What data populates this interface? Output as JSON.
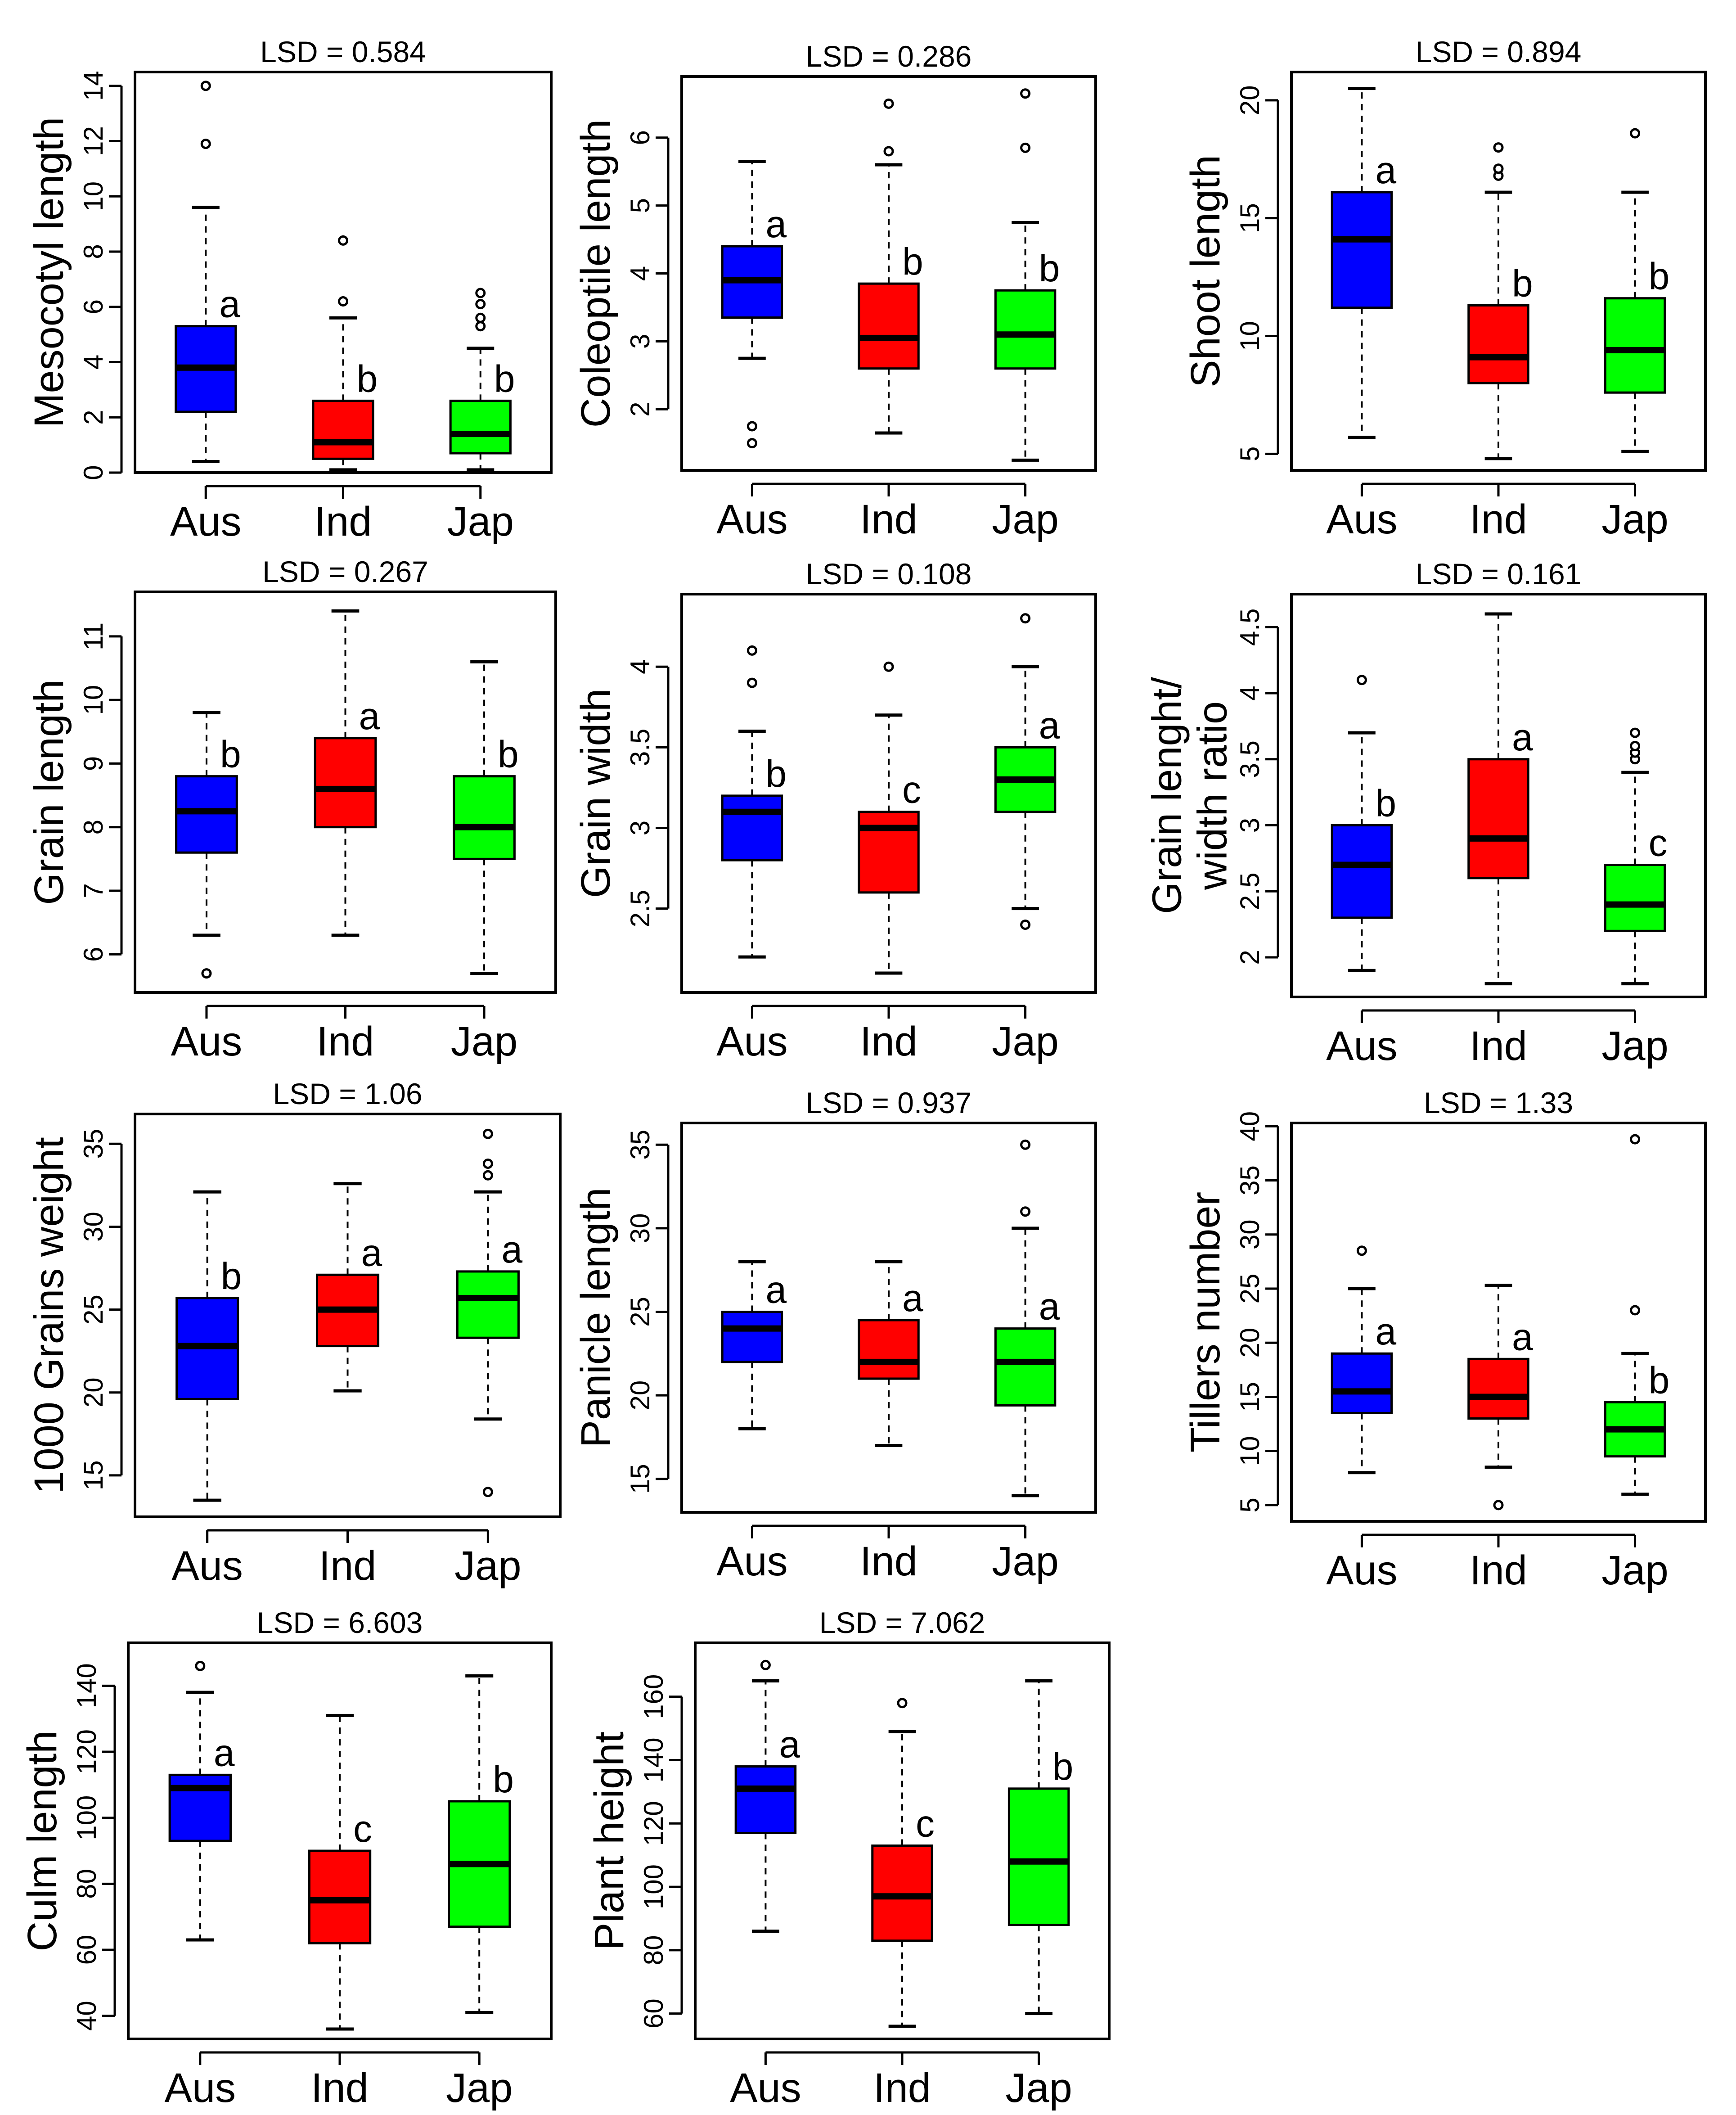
{
  "colors": {
    "Aus": "#0000ff",
    "Ind": "#ff0000",
    "Jap": "#00ff00"
  },
  "chart_data": [
    {
      "type": "boxplot",
      "title": "LSD = 0.584",
      "ylabel": "Mesocotyl length",
      "categories": [
        "Aus",
        "Ind",
        "Jap"
      ],
      "ylim": [
        0,
        14.5
      ],
      "yticks": [
        0,
        2,
        4,
        6,
        8,
        10,
        12,
        14
      ],
      "boxes": [
        {
          "name": "Aus",
          "min": 0.4,
          "q1": 2.2,
          "median": 3.8,
          "q3": 5.3,
          "max": 9.6,
          "outliers": [
            11.9,
            14.0
          ],
          "letter": "a"
        },
        {
          "name": "Ind",
          "min": 0.1,
          "q1": 0.5,
          "median": 1.1,
          "q3": 2.6,
          "max": 5.6,
          "outliers": [
            6.2,
            8.4
          ],
          "letter": "b"
        },
        {
          "name": "Jap",
          "min": 0.1,
          "q1": 0.7,
          "median": 1.4,
          "q3": 2.6,
          "max": 4.5,
          "outliers": [
            5.3,
            5.6,
            6.1,
            6.5
          ],
          "letter": "b"
        }
      ]
    },
    {
      "type": "boxplot",
      "title": "LSD = 0.286",
      "ylabel": "Coleoptile length",
      "categories": [
        "Aus",
        "Ind",
        "Jap"
      ],
      "ylim": [
        1.1,
        6.9
      ],
      "yticks": [
        2,
        3,
        4,
        5,
        6
      ],
      "boxes": [
        {
          "name": "Aus",
          "min": 2.75,
          "q1": 3.35,
          "median": 3.9,
          "q3": 4.4,
          "max": 5.65,
          "outliers": [
            1.5,
            1.75
          ],
          "letter": "a"
        },
        {
          "name": "Ind",
          "min": 1.65,
          "q1": 2.6,
          "median": 3.05,
          "q3": 3.85,
          "max": 5.6,
          "outliers": [
            5.8,
            6.5
          ],
          "letter": "b"
        },
        {
          "name": "Jap",
          "min": 1.25,
          "q1": 2.6,
          "median": 3.1,
          "q3": 3.75,
          "max": 4.75,
          "outliers": [
            5.85,
            6.65
          ],
          "letter": "b"
        }
      ]
    },
    {
      "type": "boxplot",
      "title": "LSD = 0.894",
      "ylabel": "Shoot length",
      "categories": [
        "Aus",
        "Ind",
        "Jap"
      ],
      "ylim": [
        4.3,
        21.2
      ],
      "yticks": [
        5,
        10,
        15,
        20
      ],
      "boxes": [
        {
          "name": "Aus",
          "min": 5.7,
          "q1": 11.2,
          "median": 14.1,
          "q3": 16.1,
          "max": 20.5,
          "outliers": [],
          "letter": "a"
        },
        {
          "name": "Ind",
          "min": 4.8,
          "q1": 8.0,
          "median": 9.1,
          "q3": 11.3,
          "max": 16.1,
          "outliers": [
            16.8,
            17.1,
            18.0
          ],
          "letter": "b"
        },
        {
          "name": "Jap",
          "min": 5.1,
          "q1": 7.6,
          "median": 9.4,
          "q3": 11.6,
          "max": 16.1,
          "outliers": [
            18.6
          ],
          "letter": "b"
        }
      ]
    },
    {
      "type": "boxplot",
      "title": "LSD = 0.267",
      "ylabel": "Grain length",
      "categories": [
        "Aus",
        "Ind",
        "Jap"
      ],
      "ylim": [
        5.4,
        11.7
      ],
      "yticks": [
        6,
        7,
        8,
        9,
        10,
        11
      ],
      "boxes": [
        {
          "name": "Aus",
          "min": 6.3,
          "q1": 7.6,
          "median": 8.25,
          "q3": 8.8,
          "max": 9.8,
          "outliers": [
            5.7
          ],
          "letter": "b"
        },
        {
          "name": "Ind",
          "min": 6.3,
          "q1": 8.0,
          "median": 8.6,
          "q3": 9.4,
          "max": 11.4,
          "outliers": [],
          "letter": "a"
        },
        {
          "name": "Jap",
          "min": 5.7,
          "q1": 7.5,
          "median": 8.0,
          "q3": 8.8,
          "max": 10.6,
          "outliers": [],
          "letter": "b"
        }
      ]
    },
    {
      "type": "boxplot",
      "title": "LSD = 0.108",
      "ylabel": "Grain width",
      "categories": [
        "Aus",
        "Ind",
        "Jap"
      ],
      "ylim": [
        1.98,
        4.45
      ],
      "yticks": [
        2.5,
        3.0,
        3.5,
        4.0
      ],
      "boxes": [
        {
          "name": "Aus",
          "min": 2.2,
          "q1": 2.8,
          "median": 3.1,
          "q3": 3.2,
          "max": 3.6,
          "outliers": [
            3.9,
            4.1
          ],
          "letter": "b"
        },
        {
          "name": "Ind",
          "min": 2.1,
          "q1": 2.6,
          "median": 3.0,
          "q3": 3.1,
          "max": 3.7,
          "outliers": [
            4.0
          ],
          "letter": "c"
        },
        {
          "name": "Jap",
          "min": 2.5,
          "q1": 3.1,
          "median": 3.3,
          "q3": 3.5,
          "max": 4.0,
          "outliers": [
            2.4,
            4.3
          ],
          "letter": "a"
        }
      ]
    },
    {
      "type": "boxplot",
      "title": "LSD = 0.161",
      "ylabel": "Grain lenght/ width ratio",
      "categories": [
        "Aus",
        "Ind",
        "Jap"
      ],
      "ylim": [
        1.7,
        4.75
      ],
      "yticks": [
        2.0,
        2.5,
        3.0,
        3.5,
        4.0,
        4.5
      ],
      "boxes": [
        {
          "name": "Aus",
          "min": 1.9,
          "q1": 2.3,
          "median": 2.7,
          "q3": 3.0,
          "max": 3.7,
          "outliers": [
            4.1
          ],
          "letter": "b"
        },
        {
          "name": "Ind",
          "min": 1.8,
          "q1": 2.6,
          "median": 2.9,
          "q3": 3.5,
          "max": 4.6,
          "outliers": [],
          "letter": "a"
        },
        {
          "name": "Jap",
          "min": 1.8,
          "q1": 2.2,
          "median": 2.4,
          "q3": 2.7,
          "max": 3.4,
          "outliers": [
            3.5,
            3.55,
            3.6,
            3.7
          ],
          "letter": "c"
        }
      ]
    },
    {
      "type": "boxplot",
      "title": "LSD = 1.06",
      "ylabel": "1000 Grains weight",
      "categories": [
        "Aus",
        "Ind",
        "Jap"
      ],
      "ylim": [
        12.5,
        36.8
      ],
      "yticks": [
        15,
        20,
        25,
        30,
        35
      ],
      "boxes": [
        {
          "name": "Aus",
          "min": 13.5,
          "q1": 19.6,
          "median": 22.8,
          "q3": 25.7,
          "max": 32.1,
          "outliers": [],
          "letter": "b"
        },
        {
          "name": "Ind",
          "min": 20.1,
          "q1": 22.8,
          "median": 25.0,
          "q3": 27.1,
          "max": 32.6,
          "outliers": [],
          "letter": "a"
        },
        {
          "name": "Jap",
          "min": 18.4,
          "q1": 23.3,
          "median": 25.7,
          "q3": 27.3,
          "max": 32.1,
          "outliers": [
            14.0,
            33.1,
            33.8,
            35.6
          ],
          "letter": "a"
        }
      ]
    },
    {
      "type": "boxplot",
      "title": "LSD = 0.937",
      "ylabel": "Panicle length",
      "categories": [
        "Aus",
        "Ind",
        "Jap"
      ],
      "ylim": [
        13.0,
        36.3
      ],
      "yticks": [
        15,
        20,
        25,
        30,
        35
      ],
      "boxes": [
        {
          "name": "Aus",
          "min": 18.0,
          "q1": 22.0,
          "median": 24.0,
          "q3": 25.0,
          "max": 28.0,
          "outliers": [],
          "letter": "a"
        },
        {
          "name": "Ind",
          "min": 17.0,
          "q1": 21.0,
          "median": 22.0,
          "q3": 24.5,
          "max": 28.0,
          "outliers": [],
          "letter": "a"
        },
        {
          "name": "Jap",
          "min": 14.0,
          "q1": 19.4,
          "median": 22.0,
          "q3": 24.0,
          "max": 30.0,
          "outliers": [
            31.0,
            35.0
          ],
          "letter": "a"
        }
      ]
    },
    {
      "type": "boxplot",
      "title": "LSD = 1.33",
      "ylabel": "Tillers number",
      "categories": [
        "Aus",
        "Ind",
        "Jap"
      ],
      "ylim": [
        3.5,
        40.3
      ],
      "yticks": [
        5,
        10,
        15,
        20,
        25,
        30,
        35,
        40
      ],
      "boxes": [
        {
          "name": "Aus",
          "min": 8.0,
          "q1": 13.5,
          "median": 15.5,
          "q3": 19.0,
          "max": 25.0,
          "outliers": [
            28.5
          ],
          "letter": "a"
        },
        {
          "name": "Ind",
          "min": 8.5,
          "q1": 13.0,
          "median": 15.0,
          "q3": 18.5,
          "max": 25.3,
          "outliers": [
            5.0
          ],
          "letter": "a"
        },
        {
          "name": "Jap",
          "min": 6.0,
          "q1": 9.5,
          "median": 12.0,
          "q3": 14.5,
          "max": 19.0,
          "outliers": [
            23.0,
            38.8
          ],
          "letter": "b"
        }
      ]
    },
    {
      "type": "boxplot",
      "title": "LSD = 6.603",
      "ylabel": "Culm length",
      "categories": [
        "Aus",
        "Ind",
        "Jap"
      ],
      "ylim": [
        33,
        153
      ],
      "yticks": [
        40,
        60,
        80,
        100,
        120,
        140
      ],
      "boxes": [
        {
          "name": "Aus",
          "min": 63,
          "q1": 93,
          "median": 109,
          "q3": 113,
          "max": 138,
          "outliers": [
            146
          ],
          "letter": "a"
        },
        {
          "name": "Ind",
          "min": 36,
          "q1": 62,
          "median": 75,
          "q3": 90,
          "max": 131,
          "outliers": [],
          "letter": "c"
        },
        {
          "name": "Jap",
          "min": 41,
          "q1": 67,
          "median": 86,
          "q3": 105,
          "max": 143,
          "outliers": [],
          "letter": "b"
        }
      ]
    },
    {
      "type": "boxplot",
      "title": "LSD = 7.062",
      "ylabel": "Plant height",
      "categories": [
        "Aus",
        "Ind",
        "Jap"
      ],
      "ylim": [
        52,
        177
      ],
      "yticks": [
        60,
        80,
        100,
        120,
        140,
        160
      ],
      "boxes": [
        {
          "name": "Aus",
          "min": 86,
          "q1": 117,
          "median": 131,
          "q3": 138,
          "max": 165,
          "outliers": [
            170
          ],
          "letter": "a"
        },
        {
          "name": "Ind",
          "min": 56,
          "q1": 83,
          "median": 97,
          "q3": 113,
          "max": 149,
          "outliers": [
            158
          ],
          "letter": "c"
        },
        {
          "name": "Jap",
          "min": 60,
          "q1": 88,
          "median": 108,
          "q3": 131,
          "max": 165,
          "outliers": [],
          "letter": "b"
        }
      ]
    }
  ]
}
